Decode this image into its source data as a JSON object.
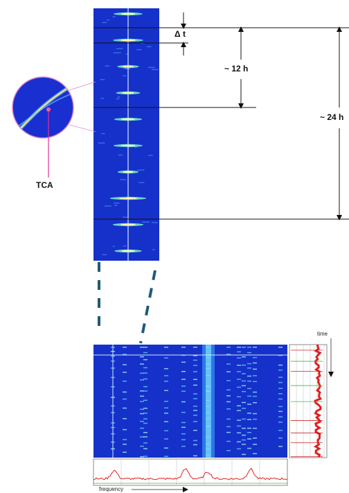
{
  "labels": {
    "delta_t": "Δ t",
    "half_day": "~ 12 h",
    "day": "~ 24 h",
    "tca": "TCA",
    "time": "time",
    "frequency": "frequency"
  }
}
